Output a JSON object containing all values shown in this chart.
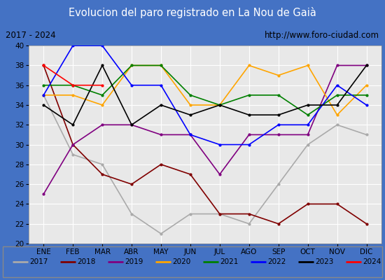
{
  "title": "Evolucion del paro registrado en La Nou de Gaià",
  "subtitle_left": "2017 - 2024",
  "subtitle_right": "http://www.foro-ciudad.com",
  "ylim": [
    20,
    40
  ],
  "yticks": [
    20,
    22,
    24,
    26,
    28,
    30,
    32,
    34,
    36,
    38,
    40
  ],
  "months": [
    "ENE",
    "FEB",
    "MAR",
    "ABR",
    "MAY",
    "JUN",
    "JUL",
    "AGO",
    "SEP",
    "OCT",
    "NOV",
    "DIC"
  ],
  "series": {
    "2017": {
      "color": "#aaaaaa",
      "data": [
        35,
        29,
        28,
        23,
        21,
        23,
        23,
        22,
        26,
        30,
        32,
        31
      ]
    },
    "2018": {
      "color": "#800000",
      "data": [
        38,
        30,
        27,
        26,
        28,
        27,
        23,
        23,
        22,
        24,
        24,
        22
      ]
    },
    "2019": {
      "color": "#800080",
      "data": [
        25,
        30,
        32,
        32,
        31,
        31,
        27,
        31,
        31,
        31,
        38,
        38
      ]
    },
    "2020": {
      "color": "#ffa500",
      "data": [
        35,
        35,
        34,
        38,
        38,
        34,
        34,
        38,
        37,
        38,
        33,
        36
      ]
    },
    "2021": {
      "color": "#008000",
      "data": [
        36,
        36,
        35,
        38,
        38,
        35,
        34,
        35,
        35,
        33,
        35,
        35
      ]
    },
    "2022": {
      "color": "#0000ff",
      "data": [
        35,
        40,
        40,
        36,
        36,
        31,
        30,
        30,
        32,
        32,
        36,
        34
      ]
    },
    "2023": {
      "color": "#000000",
      "data": [
        34,
        32,
        38,
        32,
        34,
        33,
        34,
        33,
        33,
        34,
        34,
        38
      ]
    },
    "2024": {
      "color": "#ff0000",
      "data": [
        38,
        36,
        36,
        null,
        null,
        null,
        null,
        null,
        null,
        null,
        null,
        null
      ]
    }
  },
  "title_bg": "#4472c4",
  "title_color": "white",
  "subtitle_bg": "#dddddd",
  "plot_bg": "#e8e8e8",
  "grid_color": "white",
  "legend_bg": "#f0f0f0",
  "fig_bg": "#4472c4"
}
